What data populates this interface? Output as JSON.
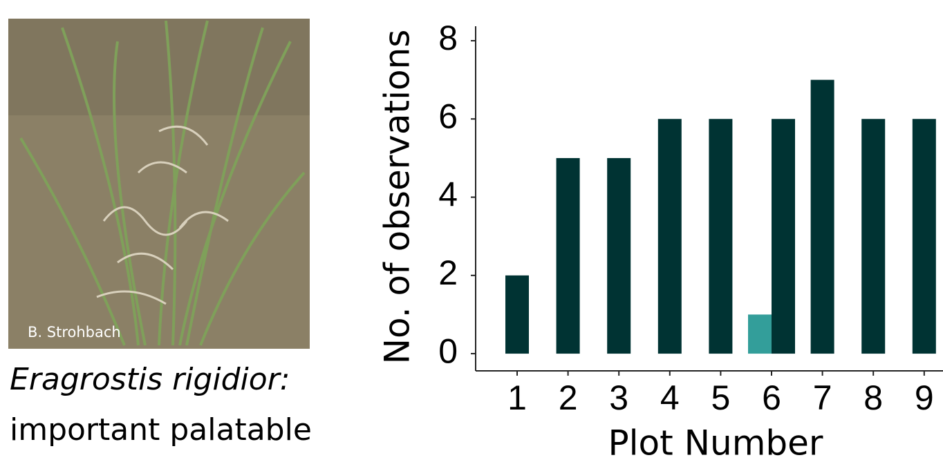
{
  "photo": {
    "credit": "B. Strohbach"
  },
  "caption": {
    "species": "Eragrostis rigidior:",
    "note": "important palatable"
  },
  "chart_data": {
    "type": "bar",
    "x_label": "Plot Number",
    "y_label": "No. of observations",
    "categories": [
      "1",
      "2",
      "3",
      "4",
      "5",
      "6",
      "7",
      "8",
      "9"
    ],
    "series": [
      {
        "color": "#339e9a",
        "values": [
          null,
          null,
          null,
          null,
          null,
          1,
          null,
          null,
          null
        ]
      },
      {
        "color": "#003333",
        "values": [
          2,
          5,
          5,
          6,
          6,
          6,
          7,
          6,
          6
        ]
      }
    ],
    "ylim": [
      -0.44,
      8.37
    ],
    "yticks": [
      0,
      2,
      4,
      6,
      8
    ],
    "grid": false
  }
}
